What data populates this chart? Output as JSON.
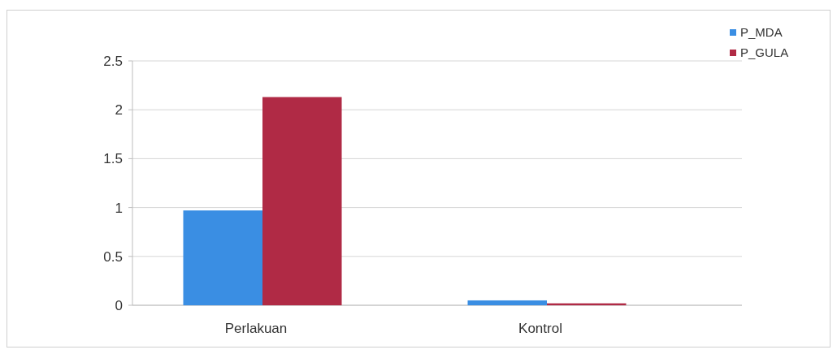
{
  "chart_data": {
    "type": "bar",
    "categories": [
      "Perlakuan",
      "Kontrol"
    ],
    "series": [
      {
        "name": "P_MDA",
        "color": "#3a8ee3",
        "values": [
          0.97,
          0.05
        ]
      },
      {
        "name": "P_GULA",
        "color": "#b02a45",
        "values": [
          2.13,
          0.02
        ]
      }
    ],
    "ylim": [
      0,
      2.5
    ],
    "yticks": [
      0,
      0.5,
      1,
      1.5,
      2,
      2.5
    ],
    "grid": "y",
    "legend": "top right"
  }
}
